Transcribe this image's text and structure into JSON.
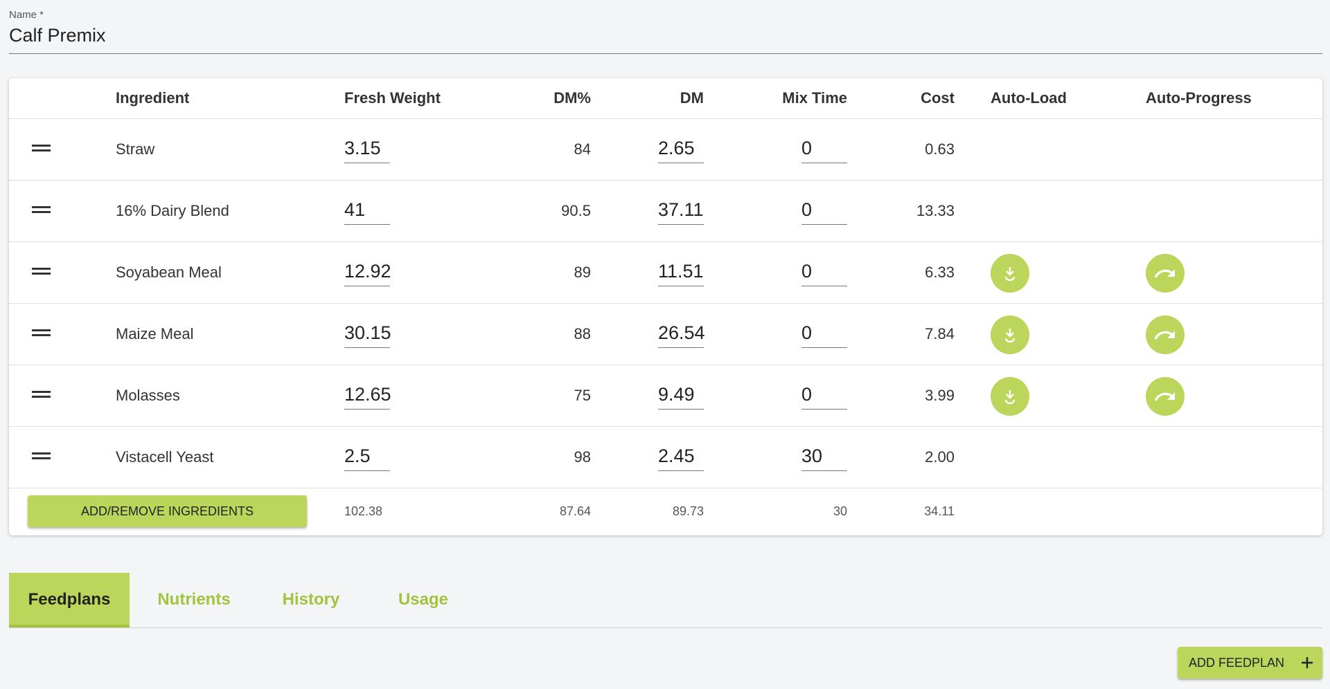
{
  "name_field": {
    "label": "Name *",
    "value": "Calf Premix"
  },
  "table": {
    "headers": [
      "Ingredient",
      "Fresh Weight",
      "DM%",
      "DM",
      "Mix Time",
      "Cost",
      "Auto-Load",
      "Auto-Progress"
    ],
    "rows": [
      {
        "ingredient": "Straw",
        "fresh_weight": "3.15",
        "dm_percent": "84",
        "dm": "2.65",
        "mix_time": "0",
        "cost": "0.63",
        "auto_load": false,
        "auto_progress": false
      },
      {
        "ingredient": "16% Dairy Blend",
        "fresh_weight": "41",
        "dm_percent": "90.5",
        "dm": "37.11",
        "mix_time": "0",
        "cost": "13.33",
        "auto_load": false,
        "auto_progress": false
      },
      {
        "ingredient": "Soyabean Meal",
        "fresh_weight": "12.92",
        "dm_percent": "89",
        "dm": "11.51",
        "mix_time": "0",
        "cost": "6.33",
        "auto_load": true,
        "auto_progress": true
      },
      {
        "ingredient": "Maize Meal",
        "fresh_weight": "30.15",
        "dm_percent": "88",
        "dm": "26.54",
        "mix_time": "0",
        "cost": "7.84",
        "auto_load": true,
        "auto_progress": true
      },
      {
        "ingredient": "Molasses",
        "fresh_weight": "12.65",
        "dm_percent": "75",
        "dm": "9.49",
        "mix_time": "0",
        "cost": "3.99",
        "auto_load": true,
        "auto_progress": true
      },
      {
        "ingredient": "Vistacell Yeast",
        "fresh_weight": "2.5",
        "dm_percent": "98",
        "dm": "2.45",
        "mix_time": "30",
        "cost": "2.00",
        "auto_load": false,
        "auto_progress": false
      }
    ],
    "footer": {
      "button": "ADD/REMOVE INGREDIENTS",
      "fresh_weight": "102.38",
      "dm_percent": "87.64",
      "dm": "89.73",
      "mix_time": "30",
      "cost": "34.11"
    }
  },
  "tabs": {
    "items": [
      "Feedplans",
      "Nutrients",
      "History",
      "Usage"
    ],
    "active": 0
  },
  "add_button": "ADD FEEDPLAN"
}
